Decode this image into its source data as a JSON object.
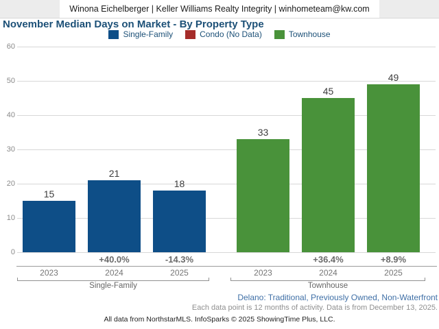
{
  "header": {
    "contact_line": "Winona Eichelberger | Keller Williams Realty Integrity | winhometeam@kw.com"
  },
  "title": "November Median Days on Market - By Property Type",
  "legend": [
    {
      "label": "Single-Family",
      "color": "#0e4e87"
    },
    {
      "label": "Condo (No Data)",
      "color": "#a52c29"
    },
    {
      "label": "Townhouse",
      "color": "#49923a"
    }
  ],
  "chart_data": {
    "type": "bar",
    "title": "November Median Days on Market - By Property Type",
    "xlabel": "",
    "ylabel": "",
    "ylim": [
      0,
      60
    ],
    "yticks": [
      0,
      10,
      20,
      30,
      40,
      50,
      60
    ],
    "grid": true,
    "legend_position": "top",
    "categories": [
      "2023",
      "2024",
      "2025"
    ],
    "groups": [
      {
        "name": "Single-Family",
        "color": "#0e4e87",
        "bars": [
          {
            "year": "2023",
            "value": 15,
            "pct_change": null
          },
          {
            "year": "2024",
            "value": 21,
            "pct_change": "+40.0%"
          },
          {
            "year": "2025",
            "value": 18,
            "pct_change": "-14.3%"
          }
        ]
      },
      {
        "name": "Townhouse",
        "color": "#49923a",
        "bars": [
          {
            "year": "2023",
            "value": 33,
            "pct_change": null
          },
          {
            "year": "2024",
            "value": 45,
            "pct_change": "+36.4%"
          },
          {
            "year": "2025",
            "value": 49,
            "pct_change": "+8.9%"
          }
        ]
      }
    ],
    "no_data_series": "Condo (No Data)"
  },
  "footnotes": {
    "filters": "Delano: Traditional, Previously Owned, Non-Waterfront",
    "data_note": "Each data point is 12 months of activity. Data is from December 13, 2025.",
    "attribution": "All data from NorthstarMLS. InfoSparks © 2025 ShowingTime Plus, LLC."
  }
}
